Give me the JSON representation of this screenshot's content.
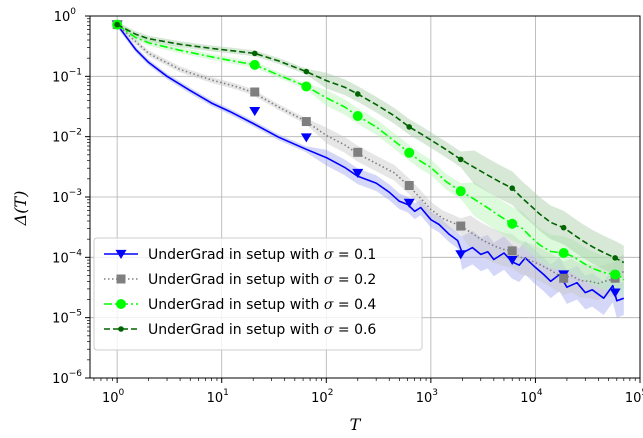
{
  "chart_data": {
    "type": "line",
    "title": "",
    "xlabel": "T",
    "ylabel": "Δ(T)",
    "xscale": "log",
    "yscale": "log",
    "xlim": [
      0.55,
      100000
    ],
    "ylim": [
      1e-06,
      1
    ],
    "grid": true,
    "legend_position": "lower-left",
    "x_ticks": [
      {
        "value": 1,
        "base": "10",
        "exp": "0"
      },
      {
        "value": 10,
        "base": "10",
        "exp": "1"
      },
      {
        "value": 100,
        "base": "10",
        "exp": "2"
      },
      {
        "value": 1000,
        "base": "10",
        "exp": "3"
      },
      {
        "value": 10000,
        "base": "10",
        "exp": "4"
      },
      {
        "value": 100000,
        "base": "10",
        "exp": "5"
      }
    ],
    "y_ticks": [
      {
        "value": 1,
        "base": "10",
        "exp": "0"
      },
      {
        "value": 0.1,
        "base": "10",
        "exp": "−1"
      },
      {
        "value": 0.01,
        "base": "10",
        "exp": "−2"
      },
      {
        "value": 0.001,
        "base": "10",
        "exp": "−3"
      },
      {
        "value": 0.0001,
        "base": "10",
        "exp": "−4"
      },
      {
        "value": 1e-05,
        "base": "10",
        "exp": "−5"
      },
      {
        "value": 1e-06,
        "base": "10",
        "exp": "−6"
      }
    ],
    "series": [
      {
        "name": "UnderGrad in setup with σ = 0.1",
        "legend_prefix": "UnderGrad in setup with ",
        "legend_sigma": "σ",
        "legend_value": " = 0.1",
        "color": "#0000ff",
        "band_color": "#9fa6f0",
        "linestyle": "solid",
        "marker": "triangle-down",
        "points": [
          [
            1,
            0.72
          ],
          [
            1.5,
            0.28
          ],
          [
            2,
            0.17
          ],
          [
            3,
            0.1
          ],
          [
            5,
            0.058
          ],
          [
            8,
            0.036
          ],
          [
            12,
            0.026
          ],
          [
            20,
            0.0165
          ],
          [
            35,
            0.0098
          ],
          [
            64,
            0.0062
          ],
          [
            100,
            0.0045
          ],
          [
            150,
            0.0031
          ],
          [
            200,
            0.0022
          ],
          [
            300,
            0.0017
          ],
          [
            400,
            0.0012
          ],
          [
            500,
            0.00085
          ],
          [
            600,
            0.00075
          ],
          [
            700,
            0.00058
          ],
          [
            800,
            0.00067
          ],
          [
            1000,
            0.00042
          ],
          [
            1200,
            0.00035
          ],
          [
            1500,
            0.00024
          ],
          [
            1800,
            0.00019
          ],
          [
            2000,
            0.000118
          ],
          [
            2500,
            0.000145
          ],
          [
            3000,
            0.000112
          ],
          [
            3500,
            0.000124
          ],
          [
            4000,
            9.2e-05
          ],
          [
            5000,
            0.000118
          ],
          [
            6000,
            8.4e-05
          ],
          [
            7000,
            7.4e-05
          ],
          [
            8000,
            9.8e-05
          ],
          [
            10000,
            6.8e-05
          ],
          [
            12000,
            5.2e-05
          ],
          [
            14000,
            4e-05
          ],
          [
            17000,
            5.2e-05
          ],
          [
            20000,
            3.2e-05
          ],
          [
            25000,
            3.8e-05
          ],
          [
            30000,
            2.6e-05
          ],
          [
            35000,
            2.9e-05
          ],
          [
            45000,
            2.1e-05
          ],
          [
            55000,
            3.4e-05
          ],
          [
            60000,
            1.9e-05
          ],
          [
            70000,
            2.1e-05
          ]
        ],
        "markers": [
          [
            1,
            0.72
          ],
          [
            20.7,
            0.0265
          ],
          [
            64.4,
            0.0097
          ],
          [
            200,
            0.0025
          ],
          [
            621,
            0.0008
          ],
          [
            1931,
            0.000112
          ],
          [
            5994,
            9e-05
          ],
          [
            18620,
            5.2e-05
          ],
          [
            57860,
            2.6e-05
          ]
        ]
      },
      {
        "name": "UnderGrad in setup with σ = 0.2",
        "legend_prefix": "UnderGrad in setup with ",
        "legend_sigma": "σ",
        "legend_value": " = 0.2",
        "color": "#7f7f7f",
        "band_color": "#c8c8c8",
        "linestyle": "dotted",
        "marker": "square",
        "points": [
          [
            1,
            0.72
          ],
          [
            2,
            0.24
          ],
          [
            4,
            0.13
          ],
          [
            8,
            0.087
          ],
          [
            14,
            0.067
          ],
          [
            20,
            0.054
          ],
          [
            35,
            0.031
          ],
          [
            64,
            0.018
          ],
          [
            100,
            0.0105
          ],
          [
            150,
            0.0073
          ],
          [
            200,
            0.0052
          ],
          [
            300,
            0.0036
          ],
          [
            450,
            0.0025
          ],
          [
            621,
            0.0015
          ],
          [
            800,
            0.00095
          ],
          [
            1000,
            0.00062
          ],
          [
            1300,
            0.00044
          ],
          [
            1600,
            0.00038
          ],
          [
            1931,
            0.00033
          ],
          [
            2400,
            0.00026
          ],
          [
            3000,
            0.0002
          ],
          [
            4000,
            0.000155
          ],
          [
            5000,
            0.000135
          ],
          [
            5994,
            0.000128
          ],
          [
            7000,
            0.000102
          ],
          [
            9000,
            8.9e-05
          ],
          [
            11000,
            7.6e-05
          ],
          [
            14000,
            6.1e-05
          ],
          [
            18620,
            4.5e-05
          ],
          [
            22000,
            5e-05
          ],
          [
            27000,
            4.1e-05
          ],
          [
            33000,
            4e-05
          ],
          [
            40000,
            3.7e-05
          ],
          [
            48000,
            4.1e-05
          ],
          [
            57860,
            4.4e-05
          ],
          [
            65000,
            5.5e-05
          ],
          [
            70000,
            5.8e-05
          ]
        ],
        "markers": [
          [
            1,
            0.72
          ],
          [
            20.7,
            0.055
          ],
          [
            64.4,
            0.0178
          ],
          [
            200,
            0.0055
          ],
          [
            621,
            0.00155
          ],
          [
            1931,
            0.00033
          ],
          [
            5994,
            0.000128
          ],
          [
            18620,
            4.5e-05
          ],
          [
            57860,
            4.5e-05
          ]
        ]
      },
      {
        "name": "UnderGrad in setup with σ = 0.4",
        "legend_prefix": "UnderGrad in setup with ",
        "legend_sigma": "σ",
        "legend_value": " = 0.4",
        "color": "#00ff00",
        "band_color": "#b4f5b4",
        "linestyle": "dashdot",
        "marker": "circle",
        "points": [
          [
            1,
            0.72
          ],
          [
            1.5,
            0.44
          ],
          [
            2,
            0.36
          ],
          [
            4,
            0.27
          ],
          [
            8,
            0.21
          ],
          [
            14,
            0.175
          ],
          [
            20.7,
            0.155
          ],
          [
            35,
            0.105
          ],
          [
            64.4,
            0.068
          ],
          [
            100,
            0.044
          ],
          [
            150,
            0.031
          ],
          [
            200,
            0.022
          ],
          [
            300,
            0.0145
          ],
          [
            450,
            0.0084
          ],
          [
            621,
            0.0054
          ],
          [
            800,
            0.0039
          ],
          [
            1000,
            0.0031
          ],
          [
            1400,
            0.0018
          ],
          [
            1931,
            0.00125
          ],
          [
            2600,
            0.00092
          ],
          [
            3500,
            0.00066
          ],
          [
            4500,
            0.00049
          ],
          [
            5994,
            0.00036
          ],
          [
            7500,
            0.0003
          ],
          [
            9000,
            0.00022
          ],
          [
            11000,
            0.00016
          ],
          [
            14000,
            0.000125
          ],
          [
            18620,
            0.000118
          ],
          [
            23000,
            0.000103
          ],
          [
            28000,
            8.2e-05
          ],
          [
            35000,
            6.6e-05
          ],
          [
            45000,
            5.6e-05
          ],
          [
            57860,
            5.2e-05
          ],
          [
            65000,
            4.8e-05
          ],
          [
            70000,
            4.2e-05
          ]
        ],
        "markers": [
          [
            1,
            0.72
          ],
          [
            20.7,
            0.155
          ],
          [
            64.4,
            0.068
          ],
          [
            200,
            0.022
          ],
          [
            621,
            0.0054
          ],
          [
            1931,
            0.00125
          ],
          [
            5994,
            0.00036
          ],
          [
            18620,
            0.000118
          ],
          [
            57860,
            5.2e-05
          ]
        ]
      },
      {
        "name": "UnderGrad in setup with σ = 0.6",
        "legend_prefix": "UnderGrad in setup with ",
        "legend_sigma": "σ",
        "legend_value": " = 0.6",
        "color": "#006400",
        "band_color": "#a6cca6",
        "linestyle": "dashed",
        "marker": "small-circle",
        "points": [
          [
            1,
            0.72
          ],
          [
            1.5,
            0.5
          ],
          [
            2,
            0.42
          ],
          [
            4,
            0.34
          ],
          [
            8,
            0.29
          ],
          [
            14,
            0.26
          ],
          [
            20.7,
            0.24
          ],
          [
            35,
            0.18
          ],
          [
            64.4,
            0.12
          ],
          [
            100,
            0.085
          ],
          [
            150,
            0.066
          ],
          [
            200,
            0.051
          ],
          [
            300,
            0.034
          ],
          [
            450,
            0.022
          ],
          [
            621,
            0.0145
          ],
          [
            800,
            0.0112
          ],
          [
            1000,
            0.0088
          ],
          [
            1400,
            0.0061
          ],
          [
            1931,
            0.0042
          ],
          [
            2600,
            0.0031
          ],
          [
            3500,
            0.0023
          ],
          [
            4500,
            0.0018
          ],
          [
            5994,
            0.0014
          ],
          [
            7500,
            0.00095
          ],
          [
            9000,
            0.00072
          ],
          [
            11000,
            0.00052
          ],
          [
            14000,
            0.00038
          ],
          [
            18620,
            0.00031
          ],
          [
            23000,
            0.00024
          ],
          [
            28000,
            0.00019
          ],
          [
            35000,
            0.00015
          ],
          [
            45000,
            0.00012
          ],
          [
            57860,
            9.8e-05
          ],
          [
            65000,
            8.8e-05
          ],
          [
            70000,
            8.2e-05
          ]
        ],
        "markers": [
          [
            1,
            0.72
          ],
          [
            20.7,
            0.24
          ],
          [
            64.4,
            0.12
          ],
          [
            200,
            0.051
          ],
          [
            621,
            0.0145
          ],
          [
            1931,
            0.0042
          ],
          [
            5994,
            0.0014
          ],
          [
            18620,
            0.00031
          ],
          [
            57860,
            9.8e-05
          ]
        ]
      }
    ]
  }
}
